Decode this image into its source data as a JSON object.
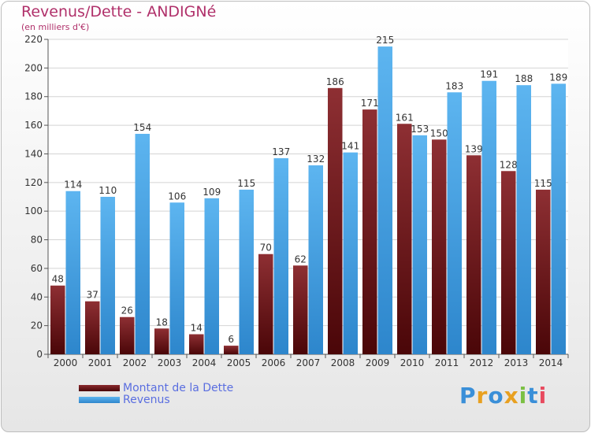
{
  "chart_data": {
    "type": "bar",
    "title": "Revenus/Dette - ANDIGNé",
    "subtitle": "(en milliers d'€)",
    "categories": [
      "2000",
      "2001",
      "2002",
      "2003",
      "2004",
      "2005",
      "2006",
      "2007",
      "2008",
      "2009",
      "2010",
      "2011",
      "2012",
      "2013",
      "2014"
    ],
    "series": [
      {
        "name": "Montant de la Dette",
        "color": "#7a1c20",
        "values": [
          48,
          37,
          26,
          18,
          14,
          6,
          70,
          62,
          186,
          171,
          161,
          150,
          139,
          128,
          115
        ],
        "labels": [
          "48",
          "37",
          "26",
          "18",
          "14",
          "6",
          "70",
          "62",
          "186",
          "171",
          "161",
          "150",
          "139",
          "128",
          "115"
        ]
      },
      {
        "name": "Revenus",
        "color": "#4da6e8",
        "values": [
          114,
          110,
          154,
          106,
          109,
          115,
          137,
          132,
          141,
          215,
          153,
          183,
          191,
          188,
          189
        ],
        "labels": [
          "114",
          "110",
          "154",
          "106",
          "109",
          "115",
          "137",
          "132",
          "141",
          "215",
          "153",
          "183",
          "191",
          "188",
          "189"
        ]
      }
    ],
    "ylim": [
      0,
      220
    ],
    "yticks": [
      "0",
      "20",
      "40",
      "60",
      "80",
      "100",
      "120",
      "140",
      "160",
      "180",
      "200",
      "220"
    ],
    "grid": true,
    "legend_position": "bottom-left"
  },
  "brand": "Proxiti"
}
